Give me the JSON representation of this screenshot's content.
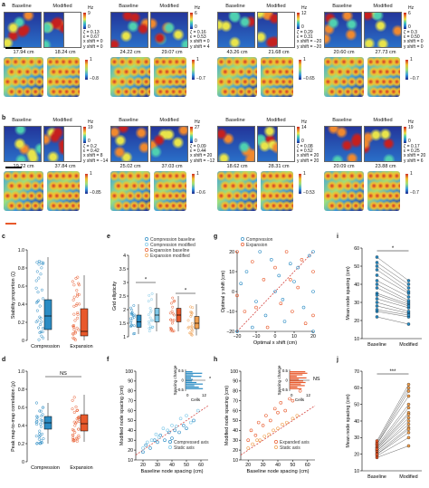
{
  "colors": {
    "compression": "#2b8cc4",
    "expansion": "#e8592b",
    "compression_baseline": "#2b8cc4",
    "compression_modified": "#7ec8e8",
    "expansion_baseline": "#e8592b",
    "expansion_modified": "#f0a050",
    "black": "#000000"
  },
  "panels": {
    "a_label": "a",
    "b_label": "b",
    "c_label": "c",
    "d_label": "d",
    "e_label": "e",
    "f_label": "f",
    "g_label": "g",
    "h_label": "h",
    "i_label": "i",
    "j_label": "j"
  },
  "row_a": {
    "cells": [
      {
        "baseline": "Baseline",
        "modified": "Modified",
        "unit": "Hz",
        "cb_max": "9",
        "cb_min": "0",
        "stats": [
          "ζ = 0.13",
          "ε = 0.67",
          "x shift = 0",
          "y shift = 0"
        ],
        "dist_left": "17.94 cm",
        "dist_right": "18.24 cm",
        "r_max": "1",
        "r_min": "−0.8"
      },
      {
        "baseline": "Baseline",
        "modified": "Modified",
        "unit": "Hz",
        "cb_max": "6",
        "cb_min": "0",
        "stats": [
          "ζ = 0.16",
          "ε = 0.53",
          "x shift = 0",
          "y shift = 4"
        ],
        "dist_left": "24.22 cm",
        "dist_right": "29.07 cm",
        "r_max": "1",
        "r_min": "−0.7"
      },
      {
        "baseline": "Baseline",
        "modified": "Modified",
        "unit": "Hz",
        "cb_max": "12",
        "cb_min": "0",
        "stats": [
          "ζ = 0.29",
          "ε = 0.31",
          "x shift = −20",
          "y shift = −20"
        ],
        "dist_left": "43.26 cm",
        "dist_right": "21.68 cm",
        "r_max": "1",
        "r_min": "−0.65"
      },
      {
        "baseline": "Baseline",
        "modified": "Modified",
        "unit": "Hz",
        "cb_max": "6",
        "cb_min": "0",
        "stats": [
          "ζ = 0.3",
          "ε = 0.50",
          "x shift = 0",
          "y shift = 0"
        ],
        "dist_left": "20.60 cm",
        "dist_right": "27.73 cm",
        "r_max": "1",
        "r_min": "−0.7"
      }
    ]
  },
  "row_b": {
    "cells": [
      {
        "baseline": "Baseline",
        "modified": "Modified",
        "unit": "Hz",
        "cb_max": "19",
        "cb_min": "0",
        "stats": [
          "ζ = 0.2",
          "ε = 0.42",
          "x shift = 8",
          "y shift = −14"
        ],
        "dist_left": "19.22 cm",
        "dist_right": "37.84 cm",
        "r_max": "1",
        "r_min": "−0.85"
      },
      {
        "baseline": "Baseline",
        "modified": "Modified",
        "unit": "Hz",
        "cb_max": "27",
        "cb_min": "0",
        "stats": [
          "ζ = 0.09",
          "ε = 0.44",
          "x shift = 20",
          "y shift = −12"
        ],
        "dist_left": "25.02 cm",
        "dist_right": "37.03 cm",
        "r_max": "1",
        "r_min": "−0.6"
      },
      {
        "baseline": "Baseline",
        "modified": "Modified",
        "unit": "Hz",
        "cb_max": "14",
        "cb_min": "0",
        "stats": [
          "ζ = 0.08",
          "ε = 0.52",
          "x shift = 20",
          "y shift = 20"
        ],
        "dist_left": "18.62 cm",
        "dist_right": "28.31 cm",
        "r_max": "1",
        "r_min": "−0.53"
      },
      {
        "baseline": "Baseline",
        "modified": "Modified",
        "unit": "Hz",
        "cb_max": "19",
        "cb_min": "0",
        "stats": [
          "ζ = 0.17",
          "ε = 0.25",
          "x shift = 20",
          "y shift = 6"
        ],
        "dist_left": "20.09 cm",
        "dist_right": "23.88 cm",
        "r_max": "1",
        "r_min": "−0.7"
      }
    ]
  },
  "chart_data": [
    {
      "panel": "c",
      "type": "box",
      "ylabel": "Stability proportion (ζ)",
      "categories": [
        "Compression",
        "Expansion"
      ],
      "yticks": [
        "0",
        "0.2",
        "0.4",
        "0.6",
        "0.8",
        "1.0"
      ],
      "ylim": [
        0,
        1.0
      ],
      "boxes": [
        {
          "name": "Compression",
          "min": 0,
          "q1": 0.12,
          "median": 0.27,
          "q3": 0.45,
          "max": 0.92
        },
        {
          "name": "Expansion",
          "min": 0,
          "q1": 0.05,
          "median": 0.1,
          "q3": 0.35,
          "max": 0.72
        }
      ]
    },
    {
      "panel": "d",
      "type": "box",
      "ylabel": "Peak map-to-map correlation (ρ)",
      "categories": [
        "Compression",
        "Expansion"
      ],
      "yticks": [
        "0",
        "0.2",
        "0.4",
        "0.6",
        "0.8",
        "1.0"
      ],
      "ylim": [
        0,
        1.0
      ],
      "annotation": "NS",
      "boxes": [
        {
          "name": "Compression",
          "min": 0.2,
          "q1": 0.36,
          "median": 0.43,
          "q3": 0.5,
          "max": 0.65
        },
        {
          "name": "Expansion",
          "min": 0.22,
          "q1": 0.34,
          "median": 0.42,
          "q3": 0.52,
          "max": 0.74
        }
      ]
    },
    {
      "panel": "e",
      "type": "box",
      "ylabel": "Grid ellipticity",
      "yticks": [
        "1",
        "1.5",
        "2",
        "2.5",
        "3",
        "3.5",
        "4"
      ],
      "ylim": [
        1,
        4
      ],
      "legend": [
        "Compression baseline",
        "Compression modified",
        "Expansion baseline",
        "Expansion modified"
      ],
      "significance": [
        "*",
        "*"
      ],
      "boxes": [
        {
          "name": "Compression baseline",
          "min": 1.1,
          "q1": 1.35,
          "median": 1.55,
          "q3": 1.8,
          "max": 2.2
        },
        {
          "name": "Compression modified",
          "min": 1.2,
          "q1": 1.55,
          "median": 1.8,
          "q3": 2.05,
          "max": 2.6
        },
        {
          "name": "Expansion baseline",
          "min": 1.2,
          "q1": 1.55,
          "median": 1.8,
          "q3": 2.05,
          "max": 2.5
        },
        {
          "name": "Expansion modified",
          "min": 1.05,
          "q1": 1.3,
          "median": 1.5,
          "q3": 1.75,
          "max": 2.2
        }
      ]
    },
    {
      "panel": "f",
      "type": "scatter",
      "xlabel": "Baseline node spacing (cm)",
      "ylabel": "Modified node spacing (cm)",
      "xticks": [
        "20",
        "30",
        "40",
        "50",
        "60"
      ],
      "yticks": [
        "10",
        "20",
        "30",
        "40",
        "50",
        "60",
        "70",
        "80",
        "90",
        "100"
      ],
      "xlim": [
        15,
        65
      ],
      "ylim": [
        10,
        100
      ],
      "legend": [
        "Compressed axis",
        "Static axis"
      ],
      "series": [
        {
          "name": "Compressed axis",
          "x": [
            20,
            22,
            25,
            28,
            30,
            32,
            35,
            38,
            40,
            42,
            45,
            48,
            50,
            55
          ],
          "y": [
            18,
            25,
            22,
            30,
            28,
            35,
            30,
            38,
            32,
            40,
            38,
            45,
            42,
            50
          ]
        },
        {
          "name": "Static axis",
          "x": [
            20,
            23,
            26,
            29,
            31,
            34,
            37,
            40,
            43,
            46,
            50,
            53,
            58
          ],
          "y": [
            22,
            28,
            30,
            36,
            33,
            42,
            40,
            45,
            44,
            52,
            55,
            48,
            60
          ]
        }
      ],
      "inset": {
        "ylabel": "Spacing change",
        "xlabel": "Cells",
        "xticks": [
          "0",
          "12"
        ],
        "yticks": [
          "0.5",
          "0",
          "−0.5"
        ],
        "annotation": "*"
      }
    },
    {
      "panel": "g",
      "type": "scatter",
      "xlabel": "Optimal x shift (cm)",
      "ylabel": "Optimal y shift (cm)",
      "xticks": [
        "−20",
        "−10",
        "0",
        "10",
        "20"
      ],
      "yticks": [
        "−20",
        "−10",
        "0",
        "10",
        "20"
      ],
      "xlim": [
        -20,
        20
      ],
      "ylim": [
        -20,
        20
      ],
      "legend": [
        "Compression",
        "Expansion"
      ],
      "series": [
        {
          "name": "Compression",
          "x": [
            -20,
            -18,
            -15,
            -10,
            -8,
            -5,
            0,
            2,
            5,
            8,
            10,
            15,
            18,
            20,
            20,
            20,
            12,
            4,
            -2,
            -12
          ],
          "y": [
            -20,
            4,
            10,
            -5,
            20,
            -12,
            0,
            8,
            -15,
            14,
            5,
            -8,
            18,
            20,
            0,
            -20,
            12,
            -4,
            16,
            -18
          ]
        },
        {
          "name": "Expansion",
          "x": [
            -20,
            -16,
            -12,
            -6,
            -4,
            0,
            3,
            6,
            9,
            12,
            14,
            16,
            20,
            20,
            -20,
            8,
            -10
          ],
          "y": [
            20,
            -10,
            15,
            6,
            -18,
            12,
            -6,
            20,
            -10,
            2,
            16,
            -16,
            10,
            -12,
            -2,
            6,
            -8
          ]
        }
      ]
    },
    {
      "panel": "h",
      "type": "scatter",
      "xlabel": "Baseline node spacing (cm)",
      "ylabel": "Modified node spacing (cm)",
      "xticks": [
        "20",
        "30",
        "40",
        "50",
        "60"
      ],
      "yticks": [
        "10",
        "20",
        "30",
        "40",
        "50",
        "60",
        "70",
        "80",
        "90",
        "100"
      ],
      "xlim": [
        15,
        65
      ],
      "ylim": [
        10,
        100
      ],
      "legend": [
        "Expanded axis",
        "Static axis"
      ],
      "series": [
        {
          "name": "Expanded axis",
          "x": [
            20,
            22,
            25,
            27,
            30,
            32,
            35,
            38,
            40,
            42,
            45,
            48,
            50,
            55
          ],
          "y": [
            30,
            40,
            35,
            48,
            45,
            55,
            50,
            62,
            58,
            68,
            60,
            72,
            70,
            80
          ]
        },
        {
          "name": "Static axis",
          "x": [
            20,
            23,
            26,
            28,
            31,
            34,
            37,
            40,
            43,
            46,
            50,
            53
          ],
          "y": [
            22,
            26,
            30,
            30,
            34,
            36,
            40,
            42,
            46,
            48,
            52,
            55
          ]
        }
      ],
      "inset": {
        "ylabel": "Spacing change",
        "xlabel": "Cells",
        "xticks": [
          "0",
          "12"
        ],
        "yticks": [
          "0.5",
          "0",
          "−0.5"
        ],
        "annotation": "NS"
      }
    },
    {
      "panel": "i",
      "type": "paired",
      "ylabel": "Mean node spacing (cm)",
      "categories": [
        "Baseline",
        "Modified"
      ],
      "yticks": [
        "10",
        "20",
        "30",
        "40",
        "50",
        "60"
      ],
      "ylim": [
        10,
        60
      ],
      "significance": "*",
      "baseline": [
        22,
        25,
        28,
        30,
        32,
        35,
        38,
        40,
        42,
        45,
        48,
        50,
        52,
        55,
        26,
        34
      ],
      "modified": [
        18,
        22,
        24,
        25,
        27,
        29,
        30,
        31,
        33,
        35,
        36,
        38,
        40,
        42,
        23,
        28
      ]
    },
    {
      "panel": "j",
      "type": "paired",
      "ylabel": "Mean node spacing (cm)",
      "categories": [
        "Baseline",
        "Modified"
      ],
      "yticks": [
        "10",
        "20",
        "30",
        "40",
        "50",
        "60",
        "70"
      ],
      "ylim": [
        10,
        70
      ],
      "significance": "***",
      "baseline": [
        18,
        19,
        20,
        21,
        22,
        22,
        23,
        24,
        24,
        25,
        26,
        26,
        27,
        28,
        20,
        23
      ],
      "modified": [
        25,
        30,
        33,
        36,
        38,
        40,
        42,
        45,
        48,
        50,
        55,
        58,
        60,
        62,
        35,
        44
      ]
    }
  ]
}
